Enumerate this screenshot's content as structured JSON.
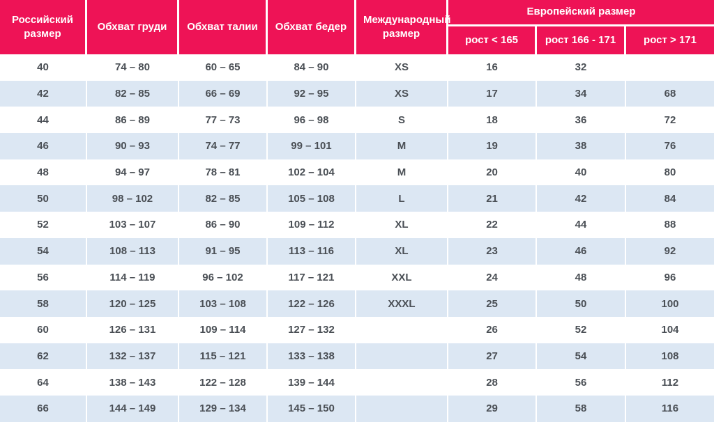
{
  "chart_data": {
    "type": "table",
    "header": {
      "russian_size": "Российский размер",
      "chest": "Обхват груди",
      "waist": "Обхват талии",
      "hips": "Обхват бедер",
      "international_size": "Международный размер",
      "european_size_group": "Европейский размер",
      "european_subcolumns": [
        "рост < 165",
        "рост 166 - 171",
        "рост > 171"
      ]
    },
    "rows": [
      [
        "40",
        "74 – 80",
        "60 – 65",
        "84 – 90",
        "XS",
        "16",
        "32",
        ""
      ],
      [
        "42",
        "82 – 85",
        "66 – 69",
        "92 – 95",
        "XS",
        "17",
        "34",
        "68"
      ],
      [
        "44",
        "86 – 89",
        "77 – 73",
        "96 – 98",
        "S",
        "18",
        "36",
        "72"
      ],
      [
        "46",
        "90 – 93",
        "74 – 77",
        "99 – 101",
        "M",
        "19",
        "38",
        "76"
      ],
      [
        "48",
        "94 – 97",
        "78 – 81",
        "102 – 104",
        "M",
        "20",
        "40",
        "80"
      ],
      [
        "50",
        "98 – 102",
        "82 – 85",
        "105 – 108",
        "L",
        "21",
        "42",
        "84"
      ],
      [
        "52",
        "103 – 107",
        "86 – 90",
        "109 – 112",
        "XL",
        "22",
        "44",
        "88"
      ],
      [
        "54",
        "108 – 113",
        "91 – 95",
        "113 – 116",
        "XL",
        "23",
        "46",
        "92"
      ],
      [
        "56",
        "114 – 119",
        "96 – 102",
        "117 – 121",
        "XXL",
        "24",
        "48",
        "96"
      ],
      [
        "58",
        "120 – 125",
        "103 – 108",
        "122 – 126",
        "XXXL",
        "25",
        "50",
        "100"
      ],
      [
        "60",
        "126 – 131",
        "109 – 114",
        "127 – 132",
        "",
        "26",
        "52",
        "104"
      ],
      [
        "62",
        "132 – 137",
        "115 – 121",
        "133 – 138",
        "",
        "27",
        "54",
        "108"
      ],
      [
        "64",
        "138 – 143",
        "122 – 128",
        "139 – 144",
        "",
        "28",
        "56",
        "112"
      ],
      [
        "66",
        "144 – 149",
        "129 – 134",
        "145 – 150",
        "",
        "29",
        "58",
        "116"
      ]
    ]
  },
  "colors": {
    "header_bg": "#ee1356",
    "row_alt_bg": "#dce7f3",
    "row_bg": "#ffffff",
    "cell_text": "#4a4f55",
    "header_text": "#ffffff",
    "divider": "#ffffff"
  }
}
